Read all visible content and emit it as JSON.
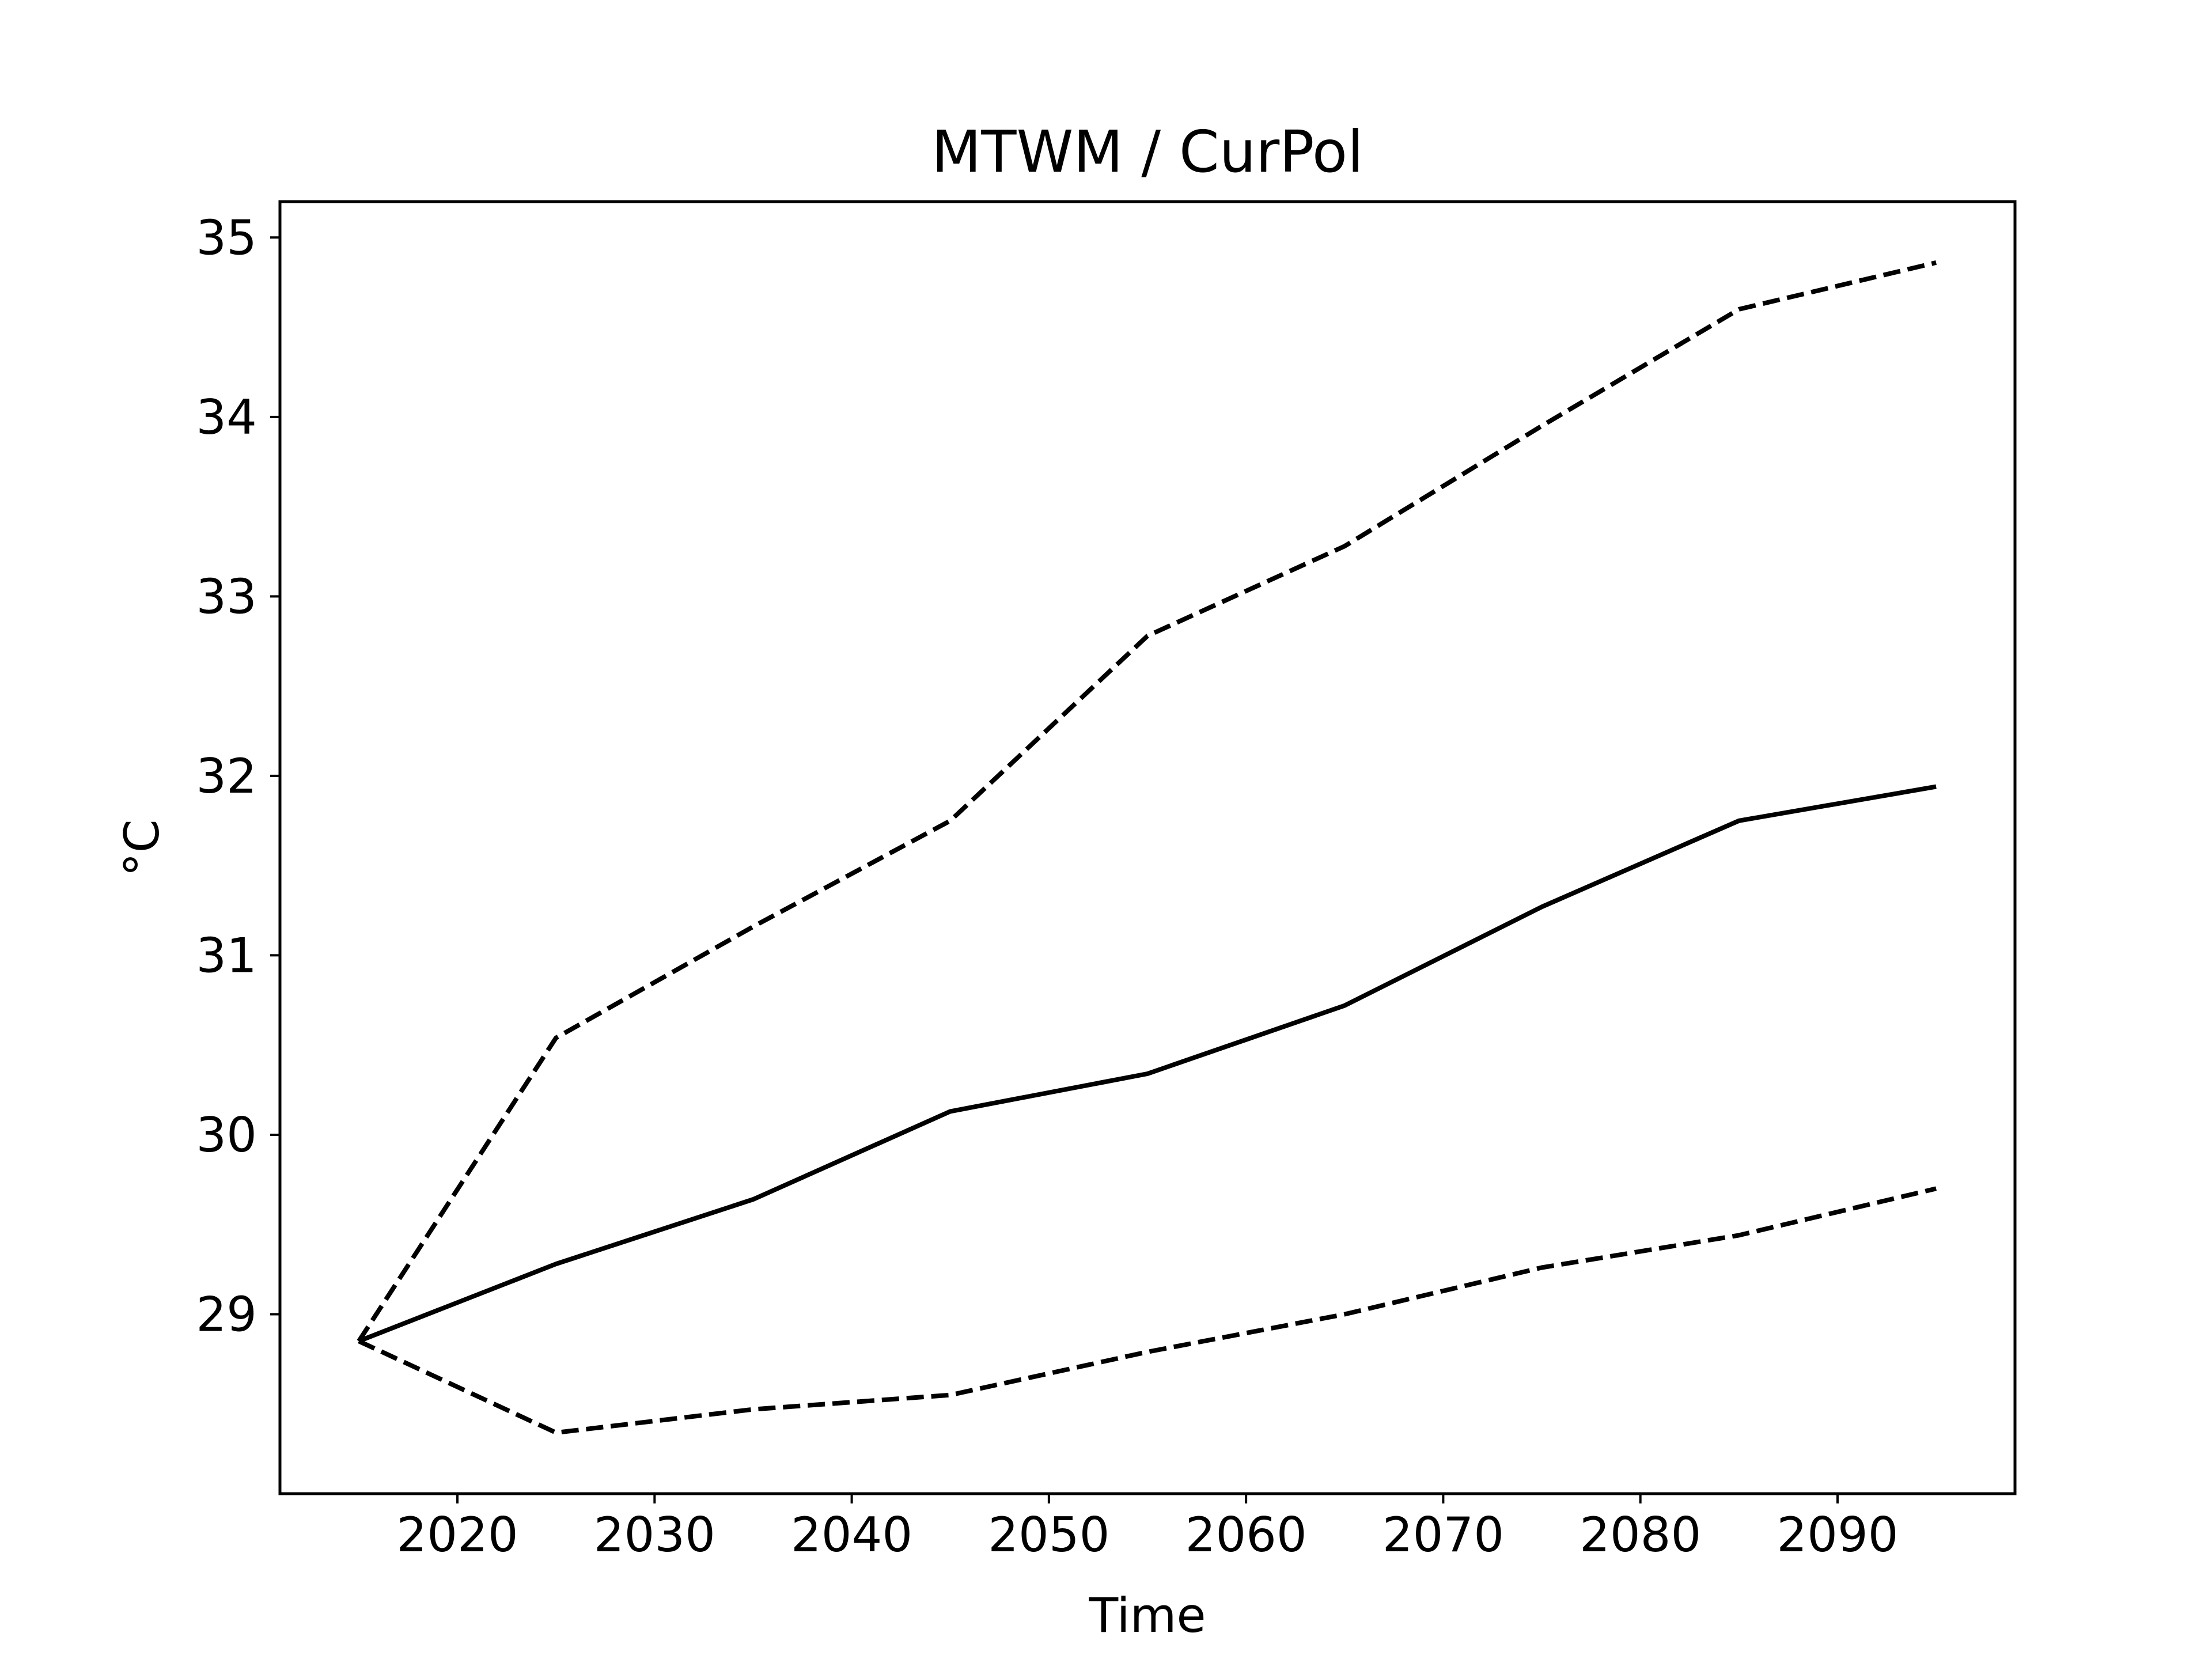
{
  "chart_data": {
    "type": "line",
    "title": "MTWM / CurPol",
    "xlabel": "Time",
    "ylabel": "°C",
    "xlim": [
      2011,
      2099
    ],
    "ylim": [
      28.0,
      35.2
    ],
    "xticks": [
      2020,
      2030,
      2040,
      2050,
      2060,
      2070,
      2080,
      2090
    ],
    "yticks": [
      29,
      30,
      31,
      32,
      33,
      34,
      35
    ],
    "x": [
      2015,
      2025,
      2035,
      2045,
      2055,
      2065,
      2075,
      2085,
      2095
    ],
    "grid": false,
    "series": [
      {
        "values": [
          28.85,
          30.54,
          31.16,
          31.75,
          32.78,
          33.28,
          33.95,
          34.6,
          34.86
        ],
        "color": "#000000",
        "style": "dashed"
      },
      {
        "values": [
          28.85,
          29.28,
          29.64,
          30.13,
          30.34,
          30.72,
          31.27,
          31.75,
          31.94
        ],
        "color": "#000000",
        "style": "solid"
      },
      {
        "values": [
          28.85,
          28.34,
          28.47,
          28.55,
          28.79,
          29.0,
          29.26,
          29.44,
          29.7
        ],
        "color": "#000000",
        "style": "dashed"
      }
    ]
  }
}
